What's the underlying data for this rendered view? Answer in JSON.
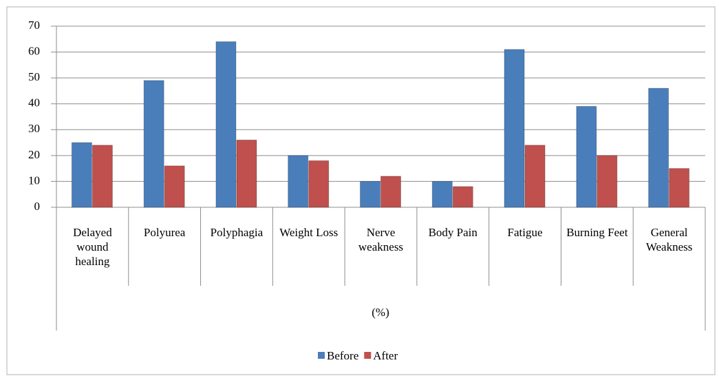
{
  "chart_data": {
    "type": "bar",
    "categories": [
      "Delayed wound healing",
      "Polyurea",
      "Polyphagia",
      "Weight Loss",
      "Nerve weakness",
      "Body Pain",
      "Fatigue",
      "Burning Feet",
      "General Weakness"
    ],
    "xlabel": "(%)",
    "series": [
      {
        "name": "Before",
        "color": "#4a7ebb",
        "values": [
          25,
          49,
          64,
          20,
          10,
          10,
          61,
          39,
          46
        ]
      },
      {
        "name": "After",
        "color": "#c0504d",
        "values": [
          24,
          16,
          26,
          18,
          12,
          8,
          24,
          20,
          15
        ]
      }
    ],
    "ylim": [
      0,
      70
    ],
    "yticks": [
      0,
      10,
      20,
      30,
      40,
      50,
      60,
      70
    ],
    "grid": true,
    "legend": "bottom"
  }
}
